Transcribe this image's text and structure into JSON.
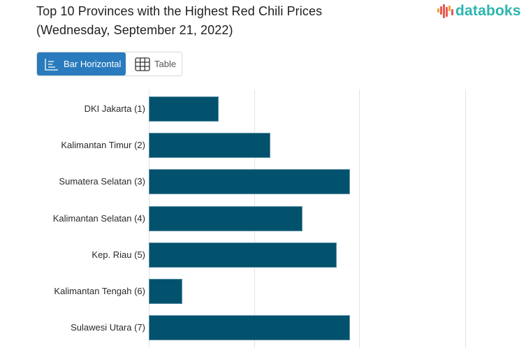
{
  "header": {
    "title_line1": "Top 10 Provinces with the Highest Red Chili Prices",
    "title_line2": "(Wednesday, September 21, 2022)",
    "logo_text": "databoks",
    "logo_icon": "bar-waveform-logo-icon"
  },
  "view_toggle": {
    "active": "Bar Horizontal",
    "options": [
      {
        "label": "Bar Horizontal",
        "icon": "bar-horizontal-icon",
        "active": true
      },
      {
        "label": "Table",
        "icon": "table-grid-icon",
        "active": false
      }
    ]
  },
  "colors": {
    "bar": "#02526d",
    "bar_border": "#5f93a8",
    "toggle_active": "#2a7bbd",
    "logo_teal": "#2bb5b0",
    "logo_red": "#e85a4f",
    "logo_orange": "#f3a13b",
    "gridline": "#e3e3e3"
  },
  "chart_data": {
    "type": "bar",
    "orientation": "horizontal",
    "title": "Top 10 Provinces with the Highest Red Chili Prices (Wednesday, September 21, 2022)",
    "categories": [
      "DKI Jakarta (1)",
      "Kalimantan Timur (2)",
      "Sumatera Selatan (3)",
      "Kalimantan Selatan (4)",
      "Kep. Riau (5)",
      "Kalimantan Tengah (6)",
      "Sulawesi Utara (7)"
    ],
    "values_gridline_units": [
      0.66,
      1.15,
      1.91,
      1.46,
      1.78,
      0.32,
      1.91
    ],
    "value_note": "Axis tick labels not visible in screenshot; values estimated as multiples of gridline spacing from bar baseline",
    "gridlines_count": 4,
    "grid": true,
    "xlabel": "",
    "ylabel": "",
    "legend": null
  }
}
